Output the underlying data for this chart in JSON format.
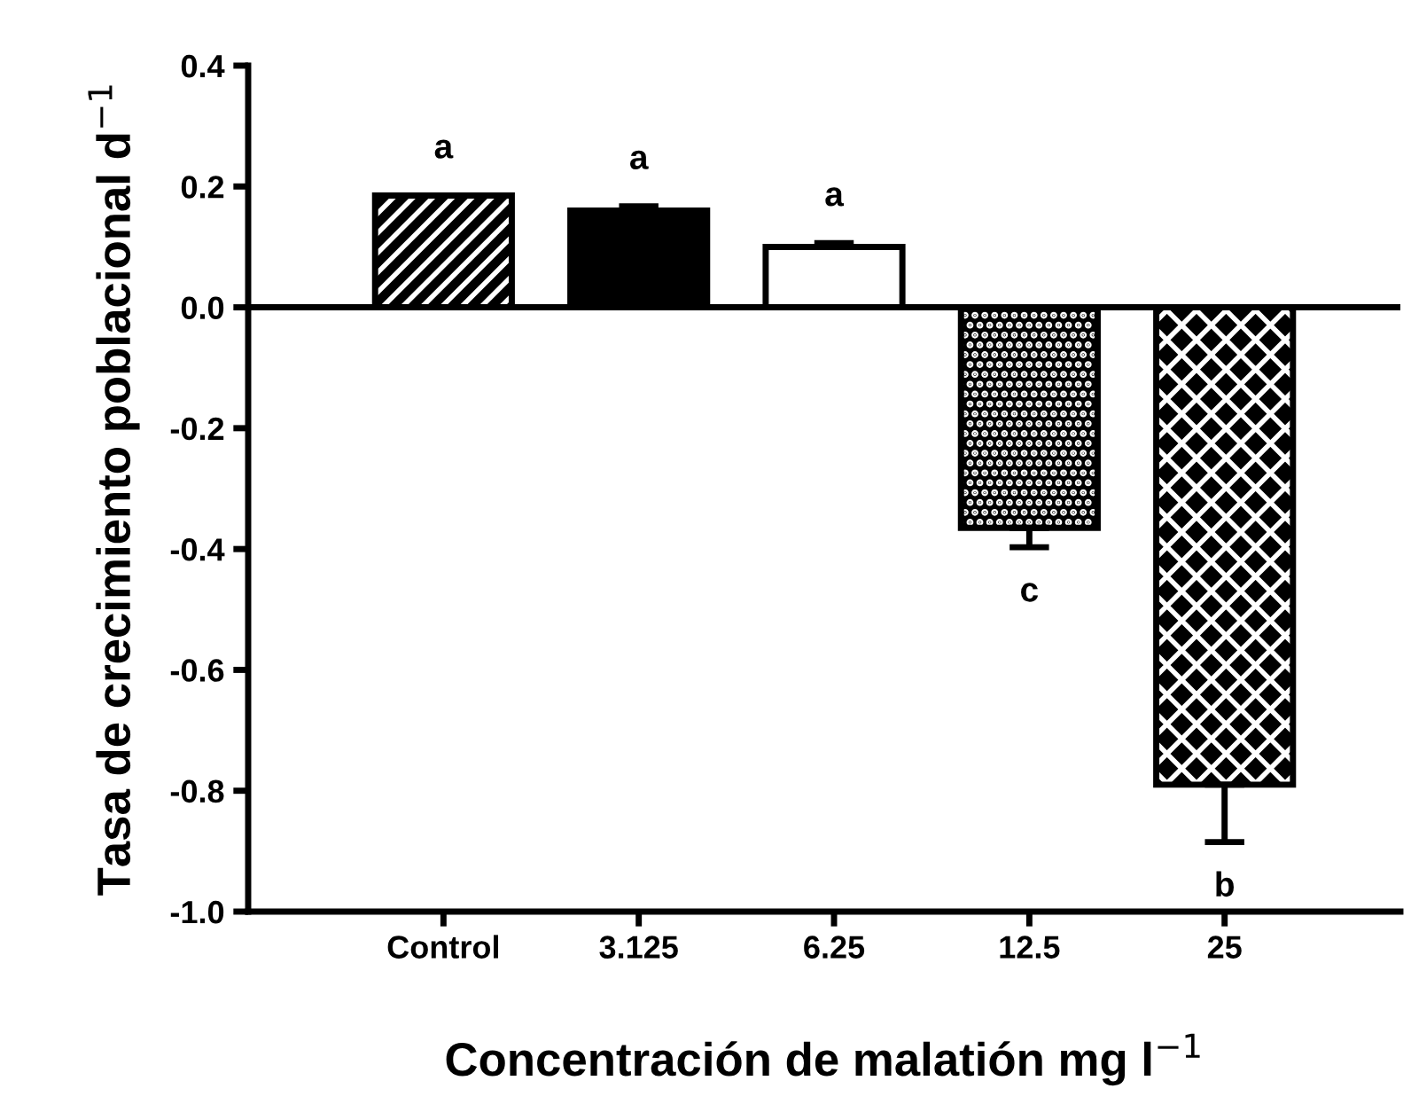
{
  "chart_data": {
    "type": "bar",
    "xlabel": "Concentración de malatión mg l$^{−1}$",
    "ylabel": "Tasa de crecimiento poblacional d$^{−1}$",
    "categories": [
      "Control",
      "3.125",
      "6.25",
      "12.5",
      "25"
    ],
    "values": [
      0.185,
      0.16,
      0.1,
      -0.365,
      -0.79
    ],
    "errors": [
      null,
      0.007,
      0.006,
      0.032,
      0.095
    ],
    "colors": [
      "#000000",
      "#000000",
      "#ffffff",
      "#000000",
      "#000000"
    ],
    "ylim": [
      -1.0,
      0.4
    ],
    "yticks": [
      {
        "value": -1.0,
        "label": "-1.0"
      },
      {
        "value": -0.8,
        "label": "-0.8"
      },
      {
        "value": -0.6,
        "label": "-0.6"
      },
      {
        "value": -0.4,
        "label": "-0.4"
      },
      {
        "value": -0.2,
        "label": "-0.2"
      },
      {
        "value": 0.0,
        "label": "0.0"
      },
      {
        "value": 0.2,
        "label": "0.2"
      },
      {
        "value": 0.4,
        "label": "0.4"
      }
    ],
    "ref_lines": [
      {
        "axis": "y",
        "value": 0,
        "color": "#000000"
      }
    ],
    "annotations": [
      "a",
      "a",
      "a",
      "c",
      "b"
    ],
    "grid": false,
    "legend": false
  }
}
